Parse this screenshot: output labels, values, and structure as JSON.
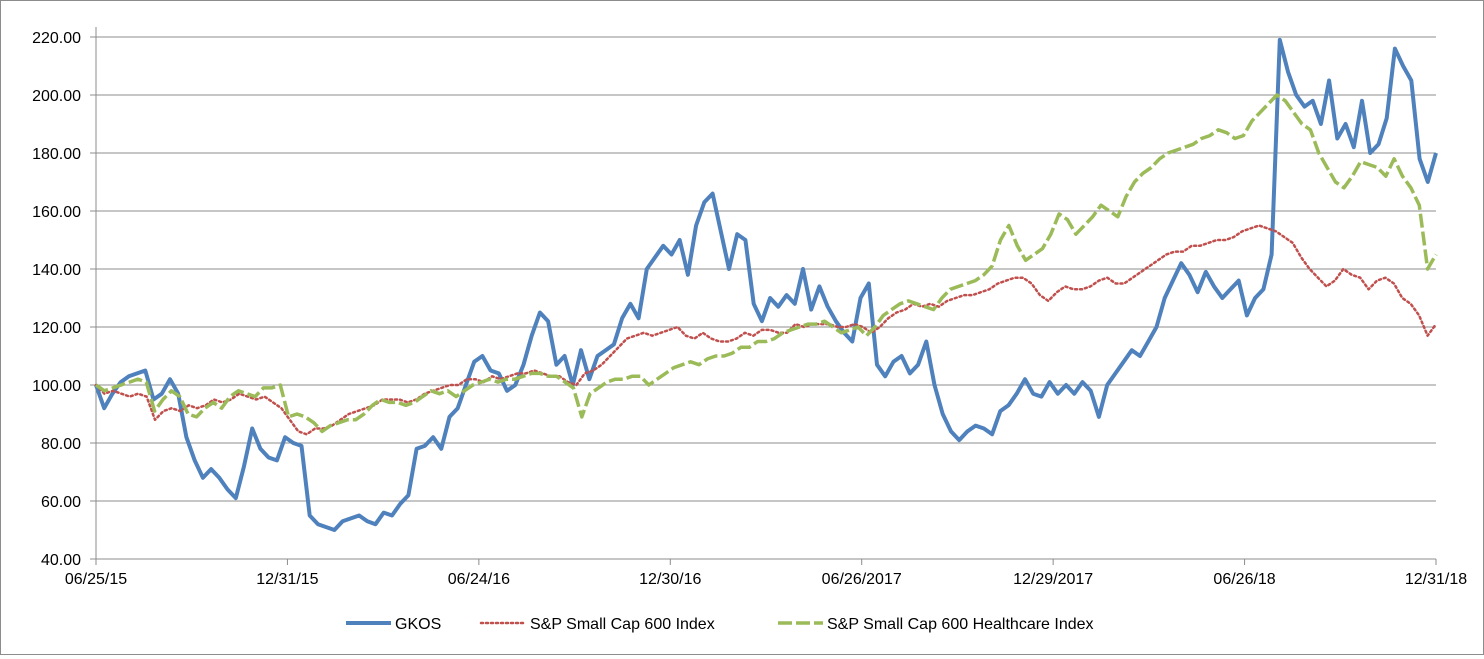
{
  "chart_data": {
    "type": "line",
    "title": "",
    "xlabel": "",
    "ylabel": "",
    "ylim": [
      40,
      220
    ],
    "yticks": [
      "40.00",
      "60.00",
      "80.00",
      "100.00",
      "120.00",
      "140.00",
      "160.00",
      "180.00",
      "200.00",
      "220.00"
    ],
    "xticks": [
      "06/25/15",
      "12/31/15",
      "06/24/16",
      "12/30/16",
      "06/26/2017",
      "12/29/2017",
      "06/26/18",
      "12/31/18"
    ],
    "grid": true,
    "legend_position": "bottom",
    "series": [
      {
        "name": "GKOS",
        "color": "#4f81bd",
        "style": "solid",
        "values": [
          100,
          92,
          97,
          101,
          103,
          104,
          105,
          95,
          97,
          102,
          97,
          82,
          74,
          68,
          71,
          68,
          64,
          61,
          72,
          85,
          78,
          75,
          74,
          82,
          80,
          79,
          55,
          52,
          51,
          50,
          53,
          54,
          55,
          53,
          52,
          56,
          55,
          59,
          62,
          78,
          79,
          82,
          78,
          89,
          92,
          100,
          108,
          110,
          105,
          104,
          98,
          100,
          107,
          117,
          125,
          122,
          107,
          110,
          100,
          112,
          102,
          110,
          112,
          114,
          123,
          128,
          123,
          140,
          144,
          148,
          145,
          150,
          138,
          155,
          163,
          166,
          153,
          140,
          152,
          150,
          128,
          122,
          130,
          127,
          131,
          128,
          140,
          126,
          134,
          127,
          122,
          118,
          115,
          130,
          135,
          107,
          103,
          108,
          110,
          104,
          107,
          115,
          100,
          90,
          84,
          81,
          84,
          86,
          85,
          83,
          91,
          93,
          97,
          102,
          97,
          96,
          101,
          97,
          100,
          97,
          101,
          98,
          89,
          100,
          104,
          108,
          112,
          110,
          115,
          120,
          130,
          136,
          142,
          138,
          132,
          139,
          134,
          130,
          133,
          136,
          124,
          130,
          133,
          145,
          219,
          208,
          200,
          196,
          198,
          190,
          205,
          185,
          190,
          182,
          198,
          180,
          183,
          192,
          216,
          210,
          205,
          178,
          170,
          180
        ],
        "start": "06/25/15",
        "end": "12/31/18"
      },
      {
        "name": "S&P Small Cap 600 Index",
        "color": "#c0504d",
        "style": "dotted",
        "values": [
          100,
          97,
          98,
          97,
          96,
          97,
          96,
          88,
          91,
          92,
          91,
          93,
          92,
          93,
          95,
          94,
          95,
          97,
          96,
          95,
          96,
          94,
          92,
          88,
          84,
          83,
          85,
          85,
          86,
          88,
          90,
          91,
          92,
          93,
          95,
          95,
          95,
          94,
          95,
          97,
          98,
          99,
          100,
          100,
          102,
          102,
          101,
          103,
          102,
          103,
          104,
          104,
          105,
          104,
          103,
          103,
          101,
          100,
          104,
          105,
          107,
          110,
          113,
          116,
          117,
          118,
          117,
          118,
          119,
          120,
          117,
          116,
          118,
          116,
          115,
          115,
          116,
          118,
          117,
          119,
          119,
          118,
          118,
          121,
          120,
          121,
          121,
          121,
          120,
          120,
          121,
          120,
          118,
          120,
          123,
          125,
          126,
          128,
          127,
          128,
          127,
          129,
          130,
          131,
          131,
          132,
          133,
          135,
          136,
          137,
          137,
          135,
          131,
          129,
          132,
          134,
          133,
          133,
          134,
          136,
          137,
          135,
          135,
          137,
          139,
          141,
          143,
          145,
          146,
          146,
          148,
          148,
          149,
          150,
          150,
          151,
          153,
          154,
          155,
          154,
          153,
          151,
          149,
          144,
          140,
          137,
          134,
          136,
          140,
          138,
          137,
          133,
          136,
          137,
          135,
          130,
          128,
          124,
          117,
          121
        ],
        "start": "06/25/15",
        "end": "12/31/18"
      },
      {
        "name": "S&P Small Cap 600 Healthcare Index",
        "color": "#9bbb59",
        "style": "dashed",
        "values": [
          100,
          98,
          99,
          100,
          101,
          102,
          101,
          91,
          95,
          98,
          96,
          90,
          89,
          92,
          94,
          92,
          96,
          98,
          97,
          96,
          99,
          99,
          100,
          89,
          90,
          89,
          87,
          84,
          86,
          87,
          88,
          88,
          90,
          93,
          95,
          94,
          94,
          93,
          94,
          96,
          98,
          97,
          98,
          96,
          98,
          100,
          101,
          102,
          101,
          102,
          102,
          103,
          104,
          104,
          103,
          103,
          101,
          99,
          89,
          97,
          99,
          101,
          102,
          102,
          103,
          103,
          100,
          102,
          104,
          106,
          107,
          108,
          107,
          109,
          110,
          110,
          111,
          113,
          113,
          115,
          115,
          116,
          118,
          119,
          120,
          121,
          121,
          122,
          120,
          118,
          119,
          120,
          117,
          120,
          124,
          126,
          128,
          129,
          128,
          127,
          126,
          130,
          133,
          134,
          135,
          136,
          138,
          141,
          150,
          155,
          148,
          143,
          145,
          147,
          152,
          159,
          157,
          152,
          155,
          158,
          162,
          160,
          158,
          165,
          170,
          173,
          175,
          178,
          180,
          181,
          182,
          183,
          185,
          186,
          188,
          187,
          185,
          186,
          191,
          194,
          197,
          200,
          198,
          194,
          190,
          188,
          180,
          175,
          170,
          168,
          172,
          177,
          176,
          175,
          172,
          178,
          172,
          168,
          162,
          140,
          145
        ],
        "start": "06/25/15",
        "end": "12/31/18"
      }
    ]
  }
}
